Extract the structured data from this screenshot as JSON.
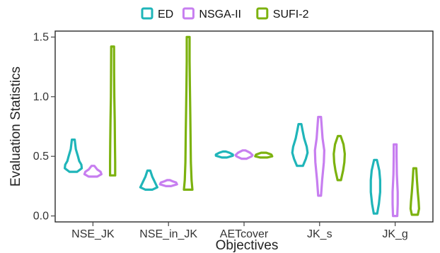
{
  "chart_data": {
    "type": "violin",
    "title": "",
    "xlabel": "Objectives",
    "ylabel": "Evaluation Statistics",
    "categories": [
      "NSE_JK",
      "NSE_in_JK",
      "AETcover",
      "JK_s",
      "JK_g"
    ],
    "ylim": [
      -0.05,
      1.55
    ],
    "yticks": [
      "0.0",
      "0.5",
      "1.0",
      "1.5"
    ],
    "ytick_values": [
      0.0,
      0.5,
      1.0,
      1.5
    ],
    "grid": false,
    "legend_position": "top-center",
    "series": [
      {
        "name": "ED",
        "color": "#1fb5b9",
        "violins": [
          {
            "min": 0.37,
            "max": 0.64,
            "density": [
              [
                0.37,
                0.45
              ],
              [
                0.4,
                1.0
              ],
              [
                0.43,
                0.95
              ],
              [
                0.46,
                0.7
              ],
              [
                0.5,
                0.55
              ],
              [
                0.56,
                0.3
              ],
              [
                0.64,
                0.05
              ]
            ]
          },
          {
            "min": 0.22,
            "max": 0.38,
            "density": [
              [
                0.22,
                0.4
              ],
              [
                0.24,
                1.0
              ],
              [
                0.27,
                0.8
              ],
              [
                0.3,
                0.6
              ],
              [
                0.33,
                0.4
              ],
              [
                0.38,
                0.08
              ]
            ]
          },
          {
            "min": 0.49,
            "max": 0.54,
            "density": [
              [
                0.49,
                0.3
              ],
              [
                0.505,
                1.0
              ],
              [
                0.515,
                1.0
              ],
              [
                0.53,
                0.6
              ],
              [
                0.54,
                0.1
              ]
            ]
          },
          {
            "min": 0.42,
            "max": 0.77,
            "density": [
              [
                0.42,
                0.35
              ],
              [
                0.48,
                0.7
              ],
              [
                0.53,
                0.9
              ],
              [
                0.58,
                0.8
              ],
              [
                0.65,
                0.5
              ],
              [
                0.72,
                0.3
              ],
              [
                0.77,
                0.05
              ]
            ]
          },
          {
            "min": 0.02,
            "max": 0.47,
            "density": [
              [
                0.02,
                0.2
              ],
              [
                0.1,
                0.4
              ],
              [
                0.2,
                0.55
              ],
              [
                0.3,
                0.55
              ],
              [
                0.38,
                0.45
              ],
              [
                0.47,
                0.1
              ]
            ]
          }
        ]
      },
      {
        "name": "NSGA-II",
        "color": "#c77ef0",
        "violins": [
          {
            "min": 0.33,
            "max": 0.42,
            "density": [
              [
                0.33,
                0.5
              ],
              [
                0.35,
                1.0
              ],
              [
                0.37,
                0.9
              ],
              [
                0.39,
                0.5
              ],
              [
                0.42,
                0.1
              ]
            ]
          },
          {
            "min": 0.25,
            "max": 0.3,
            "density": [
              [
                0.25,
                0.3
              ],
              [
                0.265,
                1.0
              ],
              [
                0.28,
                0.9
              ],
              [
                0.29,
                0.5
              ],
              [
                0.3,
                0.1
              ]
            ]
          },
          {
            "min": 0.48,
            "max": 0.55,
            "density": [
              [
                0.48,
                0.3
              ],
              [
                0.5,
                0.9
              ],
              [
                0.51,
                1.0
              ],
              [
                0.53,
                0.7
              ],
              [
                0.55,
                0.15
              ]
            ]
          },
          {
            "min": 0.17,
            "max": 0.83,
            "density": [
              [
                0.17,
                0.15
              ],
              [
                0.3,
                0.3
              ],
              [
                0.45,
                0.5
              ],
              [
                0.55,
                0.55
              ],
              [
                0.65,
                0.35
              ],
              [
                0.83,
                0.08
              ]
            ]
          },
          {
            "min": 0.0,
            "max": 0.6,
            "density": [
              [
                0.0,
                0.25
              ],
              [
                0.1,
                0.3
              ],
              [
                0.2,
                0.3
              ],
              [
                0.35,
                0.2
              ],
              [
                0.5,
                0.12
              ],
              [
                0.6,
                0.05
              ]
            ]
          }
        ]
      },
      {
        "name": "SUFI-2",
        "color": "#7cb20f",
        "violins": [
          {
            "min": 0.34,
            "max": 1.42,
            "density": [
              [
                0.34,
                0.3
              ],
              [
                0.45,
                0.3
              ],
              [
                0.6,
                0.28
              ],
              [
                0.8,
                0.25
              ],
              [
                1.0,
                0.2
              ],
              [
                1.2,
                0.18
              ],
              [
                1.42,
                0.12
              ]
            ]
          },
          {
            "min": 0.22,
            "max": 1.5,
            "density": [
              [
                0.22,
                0.5
              ],
              [
                0.3,
                0.4
              ],
              [
                0.45,
                0.32
              ],
              [
                0.7,
                0.28
              ],
              [
                0.85,
                0.25
              ],
              [
                1.1,
                0.2
              ],
              [
                1.3,
                0.15
              ],
              [
                1.5,
                0.1
              ]
            ]
          },
          {
            "min": 0.49,
            "max": 0.53,
            "density": [
              [
                0.49,
                0.4
              ],
              [
                0.5,
                1.0
              ],
              [
                0.515,
                0.9
              ],
              [
                0.53,
                0.3
              ]
            ]
          },
          {
            "min": 0.3,
            "max": 0.67,
            "density": [
              [
                0.3,
                0.2
              ],
              [
                0.38,
                0.45
              ],
              [
                0.45,
                0.6
              ],
              [
                0.52,
                0.65
              ],
              [
                0.6,
                0.5
              ],
              [
                0.67,
                0.1
              ]
            ]
          },
          {
            "min": 0.01,
            "max": 0.4,
            "density": [
              [
                0.01,
                0.35
              ],
              [
                0.06,
                0.5
              ],
              [
                0.12,
                0.45
              ],
              [
                0.2,
                0.35
              ],
              [
                0.3,
                0.25
              ],
              [
                0.4,
                0.08
              ]
            ]
          }
        ]
      }
    ]
  }
}
